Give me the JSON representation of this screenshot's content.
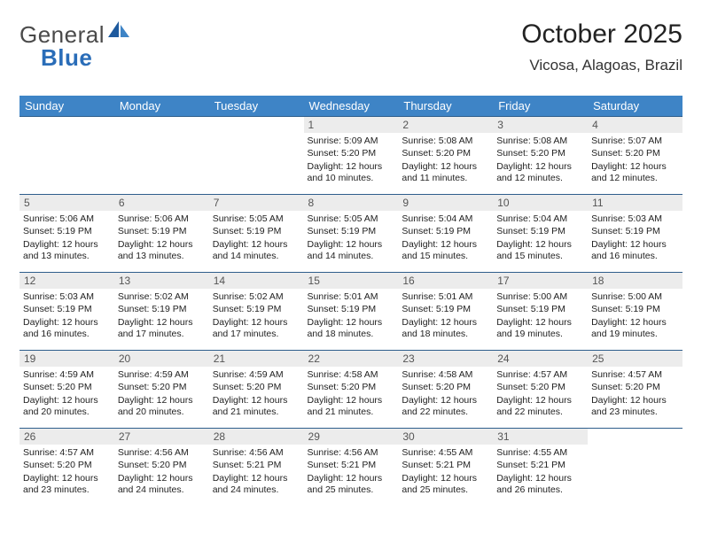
{
  "logo": {
    "text1": "General",
    "text2": "Blue"
  },
  "title": {
    "month": "October 2025",
    "region": "Vicosa, Alagoas, Brazil"
  },
  "colors": {
    "header_bg": "#3e84c6",
    "header_text": "#ffffff",
    "row_border": "#2e5e8c",
    "daynum_bg": "#ececec",
    "daynum_text": "#555555",
    "body_text": "#222222",
    "page_bg": "#ffffff",
    "logo_blue": "#2a6db8",
    "logo_gray": "#4a4a4a"
  },
  "weekdays": [
    "Sunday",
    "Monday",
    "Tuesday",
    "Wednesday",
    "Thursday",
    "Friday",
    "Saturday"
  ],
  "weeks": [
    [
      null,
      null,
      null,
      {
        "day": "1",
        "sunrise": "Sunrise: 5:09 AM",
        "sunset": "Sunset: 5:20 PM",
        "daylight": "Daylight: 12 hours and 10 minutes."
      },
      {
        "day": "2",
        "sunrise": "Sunrise: 5:08 AM",
        "sunset": "Sunset: 5:20 PM",
        "daylight": "Daylight: 12 hours and 11 minutes."
      },
      {
        "day": "3",
        "sunrise": "Sunrise: 5:08 AM",
        "sunset": "Sunset: 5:20 PM",
        "daylight": "Daylight: 12 hours and 12 minutes."
      },
      {
        "day": "4",
        "sunrise": "Sunrise: 5:07 AM",
        "sunset": "Sunset: 5:20 PM",
        "daylight": "Daylight: 12 hours and 12 minutes."
      }
    ],
    [
      {
        "day": "5",
        "sunrise": "Sunrise: 5:06 AM",
        "sunset": "Sunset: 5:19 PM",
        "daylight": "Daylight: 12 hours and 13 minutes."
      },
      {
        "day": "6",
        "sunrise": "Sunrise: 5:06 AM",
        "sunset": "Sunset: 5:19 PM",
        "daylight": "Daylight: 12 hours and 13 minutes."
      },
      {
        "day": "7",
        "sunrise": "Sunrise: 5:05 AM",
        "sunset": "Sunset: 5:19 PM",
        "daylight": "Daylight: 12 hours and 14 minutes."
      },
      {
        "day": "8",
        "sunrise": "Sunrise: 5:05 AM",
        "sunset": "Sunset: 5:19 PM",
        "daylight": "Daylight: 12 hours and 14 minutes."
      },
      {
        "day": "9",
        "sunrise": "Sunrise: 5:04 AM",
        "sunset": "Sunset: 5:19 PM",
        "daylight": "Daylight: 12 hours and 15 minutes."
      },
      {
        "day": "10",
        "sunrise": "Sunrise: 5:04 AM",
        "sunset": "Sunset: 5:19 PM",
        "daylight": "Daylight: 12 hours and 15 minutes."
      },
      {
        "day": "11",
        "sunrise": "Sunrise: 5:03 AM",
        "sunset": "Sunset: 5:19 PM",
        "daylight": "Daylight: 12 hours and 16 minutes."
      }
    ],
    [
      {
        "day": "12",
        "sunrise": "Sunrise: 5:03 AM",
        "sunset": "Sunset: 5:19 PM",
        "daylight": "Daylight: 12 hours and 16 minutes."
      },
      {
        "day": "13",
        "sunrise": "Sunrise: 5:02 AM",
        "sunset": "Sunset: 5:19 PM",
        "daylight": "Daylight: 12 hours and 17 minutes."
      },
      {
        "day": "14",
        "sunrise": "Sunrise: 5:02 AM",
        "sunset": "Sunset: 5:19 PM",
        "daylight": "Daylight: 12 hours and 17 minutes."
      },
      {
        "day": "15",
        "sunrise": "Sunrise: 5:01 AM",
        "sunset": "Sunset: 5:19 PM",
        "daylight": "Daylight: 12 hours and 18 minutes."
      },
      {
        "day": "16",
        "sunrise": "Sunrise: 5:01 AM",
        "sunset": "Sunset: 5:19 PM",
        "daylight": "Daylight: 12 hours and 18 minutes."
      },
      {
        "day": "17",
        "sunrise": "Sunrise: 5:00 AM",
        "sunset": "Sunset: 5:19 PM",
        "daylight": "Daylight: 12 hours and 19 minutes."
      },
      {
        "day": "18",
        "sunrise": "Sunrise: 5:00 AM",
        "sunset": "Sunset: 5:19 PM",
        "daylight": "Daylight: 12 hours and 19 minutes."
      }
    ],
    [
      {
        "day": "19",
        "sunrise": "Sunrise: 4:59 AM",
        "sunset": "Sunset: 5:20 PM",
        "daylight": "Daylight: 12 hours and 20 minutes."
      },
      {
        "day": "20",
        "sunrise": "Sunrise: 4:59 AM",
        "sunset": "Sunset: 5:20 PM",
        "daylight": "Daylight: 12 hours and 20 minutes."
      },
      {
        "day": "21",
        "sunrise": "Sunrise: 4:59 AM",
        "sunset": "Sunset: 5:20 PM",
        "daylight": "Daylight: 12 hours and 21 minutes."
      },
      {
        "day": "22",
        "sunrise": "Sunrise: 4:58 AM",
        "sunset": "Sunset: 5:20 PM",
        "daylight": "Daylight: 12 hours and 21 minutes."
      },
      {
        "day": "23",
        "sunrise": "Sunrise: 4:58 AM",
        "sunset": "Sunset: 5:20 PM",
        "daylight": "Daylight: 12 hours and 22 minutes."
      },
      {
        "day": "24",
        "sunrise": "Sunrise: 4:57 AM",
        "sunset": "Sunset: 5:20 PM",
        "daylight": "Daylight: 12 hours and 22 minutes."
      },
      {
        "day": "25",
        "sunrise": "Sunrise: 4:57 AM",
        "sunset": "Sunset: 5:20 PM",
        "daylight": "Daylight: 12 hours and 23 minutes."
      }
    ],
    [
      {
        "day": "26",
        "sunrise": "Sunrise: 4:57 AM",
        "sunset": "Sunset: 5:20 PM",
        "daylight": "Daylight: 12 hours and 23 minutes."
      },
      {
        "day": "27",
        "sunrise": "Sunrise: 4:56 AM",
        "sunset": "Sunset: 5:20 PM",
        "daylight": "Daylight: 12 hours and 24 minutes."
      },
      {
        "day": "28",
        "sunrise": "Sunrise: 4:56 AM",
        "sunset": "Sunset: 5:21 PM",
        "daylight": "Daylight: 12 hours and 24 minutes."
      },
      {
        "day": "29",
        "sunrise": "Sunrise: 4:56 AM",
        "sunset": "Sunset: 5:21 PM",
        "daylight": "Daylight: 12 hours and 25 minutes."
      },
      {
        "day": "30",
        "sunrise": "Sunrise: 4:55 AM",
        "sunset": "Sunset: 5:21 PM",
        "daylight": "Daylight: 12 hours and 25 minutes."
      },
      {
        "day": "31",
        "sunrise": "Sunrise: 4:55 AM",
        "sunset": "Sunset: 5:21 PM",
        "daylight": "Daylight: 12 hours and 26 minutes."
      },
      null
    ]
  ]
}
